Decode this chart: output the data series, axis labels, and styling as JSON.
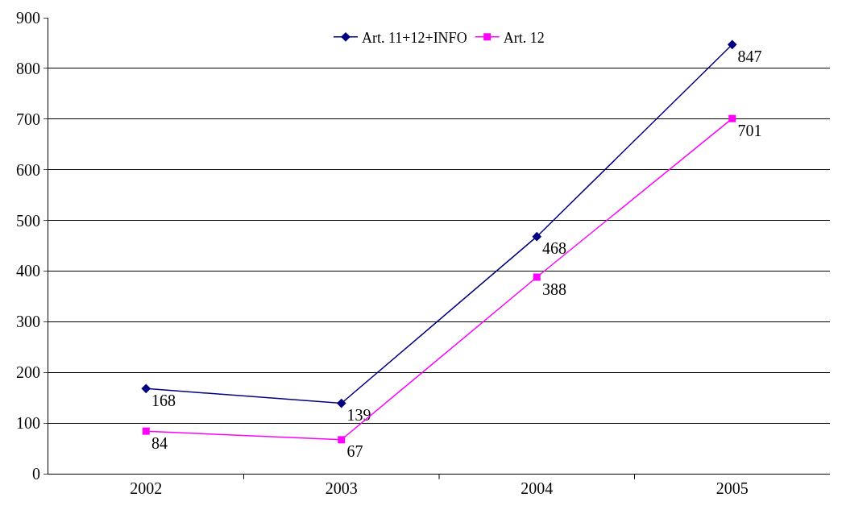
{
  "chart_data": {
    "type": "line",
    "categories": [
      "2002",
      "2003",
      "2004",
      "2005"
    ],
    "series": [
      {
        "name": "Art. 11+12+INFO",
        "color": "#000080",
        "marker": "diamond",
        "values": [
          168,
          139,
          468,
          847
        ]
      },
      {
        "name": "Art. 12",
        "color": "#ff00ff",
        "marker": "square",
        "values": [
          84,
          67,
          388,
          701
        ]
      }
    ],
    "ylim": [
      0,
      900
    ],
    "yticks": [
      0,
      100,
      200,
      300,
      400,
      500,
      600,
      700,
      800,
      900
    ],
    "grid": "y",
    "legend": "top",
    "data_labels": true,
    "line_style": "solid"
  }
}
